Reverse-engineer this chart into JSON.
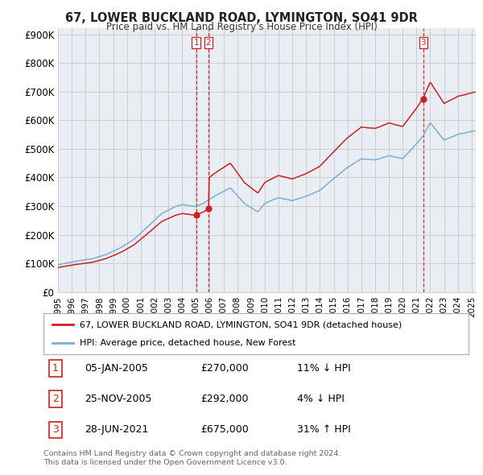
{
  "title": "67, LOWER BUCKLAND ROAD, LYMINGTON, SO41 9DR",
  "subtitle": "Price paid vs. HM Land Registry's House Price Index (HPI)",
  "ylabel_ticks": [
    "£0",
    "£100K",
    "£200K",
    "£300K",
    "£400K",
    "£500K",
    "£600K",
    "£700K",
    "£800K",
    "£900K"
  ],
  "ytick_values": [
    0,
    100000,
    200000,
    300000,
    400000,
    500000,
    600000,
    700000,
    800000,
    900000
  ],
  "ylim": [
    0,
    920000
  ],
  "xlim_start": 1995.0,
  "xlim_end": 2025.3,
  "hpi_color": "#7bafd4",
  "price_color": "#cc2222",
  "sale_dot_color": "#cc2222",
  "vline_color": "#cc2222",
  "grid_color": "#cccccc",
  "bg_color": "#ffffff",
  "plot_bg_color": "#e8eef4",
  "legend_entries": [
    "67, LOWER BUCKLAND ROAD, LYMINGTON, SO41 9DR (detached house)",
    "HPI: Average price, detached house, New Forest"
  ],
  "transactions": [
    {
      "num": 1,
      "date": "05-JAN-2005",
      "price": 270000,
      "pct": "11%",
      "dir": "↓",
      "x_year": 2005.02
    },
    {
      "num": 2,
      "date": "25-NOV-2005",
      "price": 292000,
      "pct": "4%",
      "dir": "↓",
      "x_year": 2005.9
    },
    {
      "num": 3,
      "date": "28-JUN-2021",
      "price": 675000,
      "pct": "31%",
      "dir": "↑",
      "x_year": 2021.5
    }
  ],
  "footnote1": "Contains HM Land Registry data © Crown copyright and database right 2024.",
  "footnote2": "This data is licensed under the Open Government Licence v3.0."
}
